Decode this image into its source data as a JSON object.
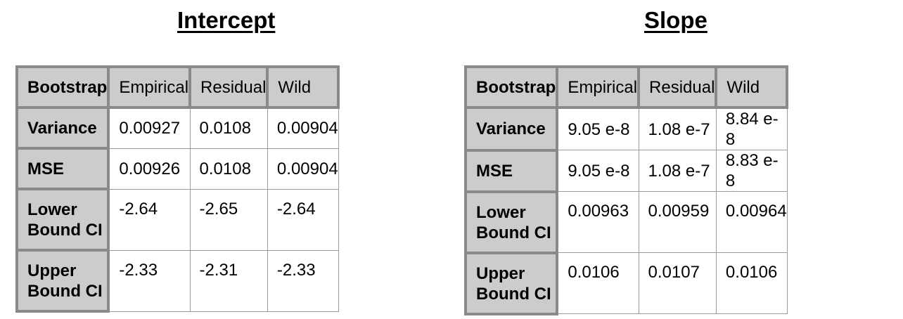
{
  "tables": [
    {
      "title": "Intercept",
      "columns": [
        "Bootstrap",
        "Empirical",
        "Residual",
        "Wild"
      ],
      "rows": [
        {
          "label": "Variance",
          "values": [
            "0.00927",
            "0.0108",
            "0.00904"
          ]
        },
        {
          "label": "MSE",
          "values": [
            "0.00926",
            "0.0108",
            "0.00904"
          ]
        },
        {
          "label": "Lower Bound CI",
          "values": [
            "-2.64",
            "-2.65",
            "-2.64"
          ]
        },
        {
          "label": "Upper Bound CI",
          "values": [
            "-2.33",
            "-2.31",
            "-2.33"
          ]
        }
      ]
    },
    {
      "title": "Slope",
      "columns": [
        "Bootstrap",
        "Empirical",
        "Residual",
        "Wild"
      ],
      "rows": [
        {
          "label": "Variance",
          "values": [
            "9.05 e-8",
            "1.08 e-7",
            "8.84 e-8"
          ]
        },
        {
          "label": "MSE",
          "values": [
            "9.05 e-8",
            "1.08 e-7",
            "8.83 e-8"
          ]
        },
        {
          "label": "Lower Bound CI",
          "values": [
            "0.00963",
            "0.00959",
            "0.00964"
          ]
        },
        {
          "label": "Upper Bound CI",
          "values": [
            "0.0106",
            "0.0107",
            "0.0106"
          ]
        }
      ]
    }
  ],
  "colors": {
    "header_fill": "#cccccc",
    "header_border": "#8a8a8a",
    "cell_border": "#9a9a9a"
  }
}
